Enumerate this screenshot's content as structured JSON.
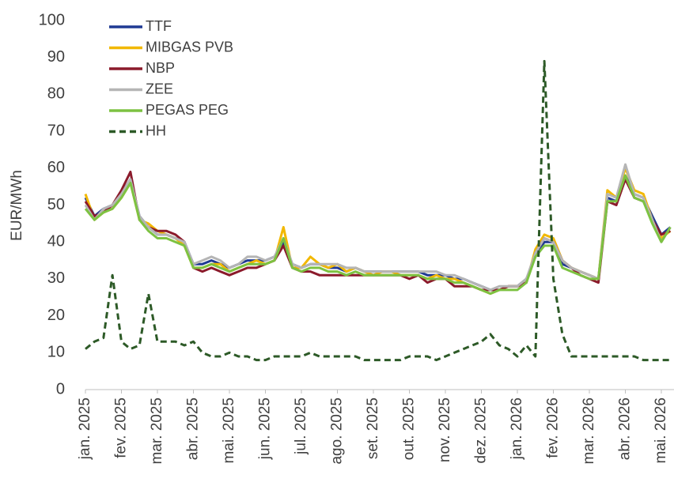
{
  "chart_data": {
    "type": "line",
    "y_label": "EUR/MWh",
    "categories": [
      "jan. 2025",
      null,
      null,
      null,
      "fev. 2025",
      null,
      null,
      null,
      "mar. 2025",
      null,
      null,
      null,
      "abr. 2025",
      null,
      null,
      null,
      "mai. 2025",
      null,
      null,
      null,
      "jun. 2025",
      null,
      null,
      null,
      "jul. 2025",
      null,
      null,
      null,
      "ago. 2025",
      null,
      null,
      null,
      "set. 2025",
      null,
      null,
      null,
      "out. 2025",
      null,
      null,
      null,
      "nov. 2025",
      null,
      null,
      null,
      "dez. 2025",
      null,
      null,
      null,
      "jan. 2026",
      null,
      null,
      null,
      "fev. 2026",
      null,
      null,
      null,
      "mar. 2026",
      null,
      null,
      null,
      "abr. 2026",
      null,
      null,
      null,
      "mai. 2026",
      null
    ],
    "series": [
      {
        "name": "TTF",
        "color": "#1f3a93",
        "values": [
          52,
          47,
          49,
          50,
          53,
          57,
          47,
          44,
          42,
          42,
          41,
          40,
          34,
          34,
          35,
          34,
          33,
          34,
          35,
          35,
          35,
          36,
          40,
          34,
          33,
          34,
          34,
          33,
          33,
          32,
          33,
          32,
          32,
          32,
          32,
          32,
          32,
          32,
          31,
          31,
          31,
          30,
          30,
          29,
          28,
          27,
          27,
          28,
          28,
          30,
          36,
          40,
          40,
          34,
          33,
          32,
          31,
          30,
          52,
          51,
          58,
          53,
          52,
          47,
          42,
          44
        ]
      },
      {
        "name": "MIBGAS PVB",
        "color": "#f2b800",
        "values": [
          53,
          46,
          48,
          49,
          52,
          56,
          46,
          45,
          43,
          42,
          41,
          39,
          33,
          33,
          34,
          34,
          32,
          33,
          34,
          35,
          34,
          35,
          44,
          33,
          33,
          36,
          34,
          33,
          34,
          32,
          33,
          32,
          31,
          32,
          32,
          31,
          31,
          31,
          30,
          31,
          30,
          30,
          29,
          28,
          27,
          26,
          27,
          28,
          28,
          29,
          38,
          42,
          41,
          35,
          33,
          32,
          31,
          30,
          54,
          52,
          60,
          54,
          53,
          46,
          41,
          43
        ]
      },
      {
        "name": "NBP",
        "color": "#8b1a2b",
        "values": [
          51,
          47,
          48,
          50,
          54,
          59,
          46,
          44,
          43,
          43,
          42,
          40,
          33,
          32,
          33,
          32,
          31,
          32,
          33,
          33,
          34,
          35,
          39,
          33,
          32,
          32,
          31,
          31,
          31,
          31,
          31,
          31,
          31,
          31,
          31,
          31,
          30,
          31,
          29,
          30,
          30,
          28,
          28,
          28,
          27,
          27,
          27,
          28,
          28,
          29,
          37,
          41,
          40,
          35,
          33,
          31,
          30,
          29,
          51,
          50,
          57,
          52,
          51,
          46,
          42,
          43
        ]
      },
      {
        "name": "ZEE",
        "color": "#b5b5b5",
        "values": [
          50,
          46,
          49,
          50,
          53,
          57,
          47,
          44,
          42,
          42,
          41,
          40,
          34,
          35,
          36,
          35,
          33,
          34,
          36,
          36,
          35,
          36,
          41,
          34,
          33,
          34,
          34,
          34,
          34,
          33,
          33,
          32,
          32,
          32,
          32,
          32,
          32,
          32,
          32,
          32,
          31,
          31,
          30,
          29,
          28,
          27,
          28,
          28,
          28,
          30,
          37,
          41,
          40,
          35,
          33,
          32,
          31,
          30,
          53,
          52,
          61,
          53,
          52,
          46,
          40,
          44
        ]
      },
      {
        "name": "PEGAS PEG",
        "color": "#7dc242",
        "values": [
          49,
          46,
          48,
          49,
          52,
          56,
          46,
          43,
          41,
          41,
          40,
          39,
          33,
          33,
          34,
          33,
          32,
          33,
          34,
          34,
          34,
          35,
          41,
          33,
          32,
          33,
          33,
          32,
          32,
          31,
          32,
          31,
          31,
          31,
          31,
          31,
          31,
          31,
          30,
          30,
          30,
          29,
          29,
          28,
          27,
          26,
          27,
          27,
          27,
          29,
          36,
          39,
          39,
          33,
          32,
          31,
          30,
          30,
          51,
          51,
          58,
          52,
          51,
          45,
          40,
          44
        ]
      },
      {
        "name": "HH",
        "color": "#2d5a27",
        "dashed": true,
        "values": [
          11,
          13,
          14,
          31,
          13,
          11,
          12,
          26,
          13,
          13,
          13,
          12,
          13,
          10,
          9,
          9,
          10,
          9,
          9,
          8,
          8,
          9,
          9,
          9,
          9,
          10,
          9,
          9,
          9,
          9,
          9,
          8,
          8,
          8,
          8,
          8,
          9,
          9,
          9,
          8,
          9,
          10,
          11,
          12,
          13,
          15,
          12,
          11,
          9,
          12,
          9,
          89,
          30,
          15,
          9,
          9,
          9,
          9,
          9,
          9,
          9,
          9,
          8,
          8,
          8,
          8
        ]
      }
    ],
    "ylim": [
      0,
      100
    ],
    "yticks": [
      0,
      10,
      20,
      30,
      40,
      50,
      60,
      70,
      80,
      90,
      100
    ],
    "grid": false,
    "legend": "top-left"
  }
}
